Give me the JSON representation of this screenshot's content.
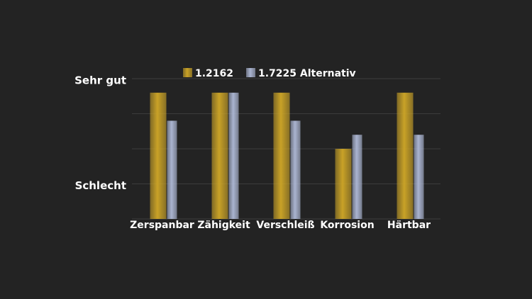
{
  "chart_data": {
    "type": "bar",
    "categories": [
      "Zerspanbar",
      "Zähigkeit",
      "Verschleiß",
      "Korrosion",
      "Härtbar"
    ],
    "series": [
      {
        "name": "1.2162",
        "color": "#c9a227",
        "values": [
          3.6,
          3.6,
          3.6,
          2.0,
          3.6
        ]
      },
      {
        "name": "1.7225 Alternativ",
        "color": "#aab4d0",
        "values": [
          2.8,
          3.6,
          2.8,
          2.4,
          2.4
        ]
      }
    ],
    "ylim": [
      0,
      4
    ],
    "yticks": [
      {
        "value": 1,
        "label": "Schlecht"
      },
      {
        "value": 2,
        "label": null
      },
      {
        "value": 3,
        "label": null
      },
      {
        "value": 4,
        "label": "Sehr gut"
      }
    ],
    "grid": true,
    "legend": "top"
  }
}
